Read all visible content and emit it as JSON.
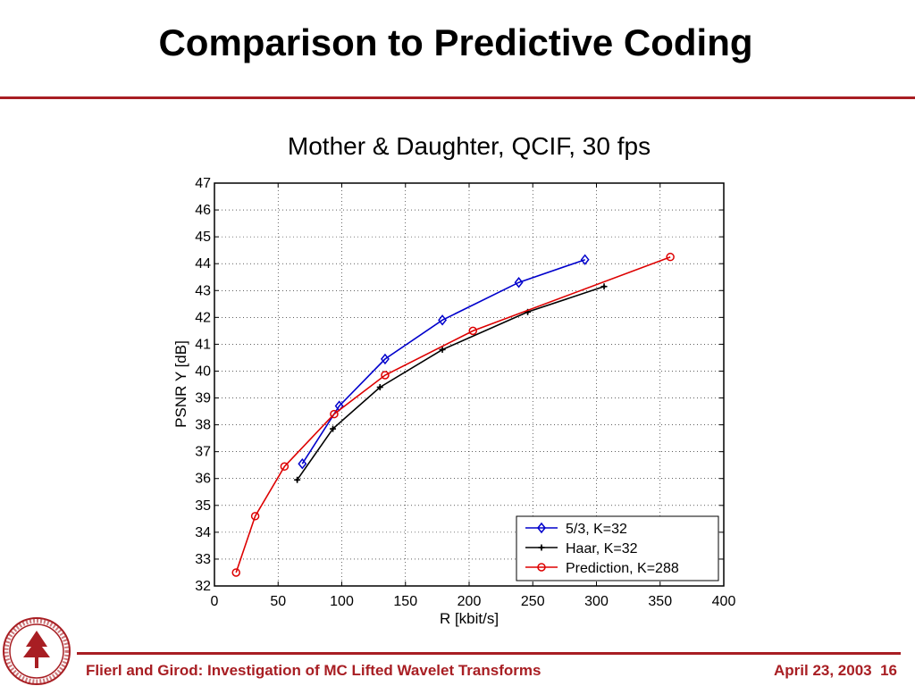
{
  "slide": {
    "title": "Comparison to Predictive Coding",
    "footer_left": "Flierl and Girod: Investigation of MC Lifted Wavelet Transforms",
    "footer_date": "April 23, 2003",
    "page_number": "16",
    "accent_color": "#a81e23",
    "logo": "stanford-university-seal"
  },
  "chart_data": {
    "type": "line",
    "title": "Mother & Daughter, QCIF, 30 fps",
    "xlabel": "R [kbit/s]",
    "ylabel": "PSNR Y [dB]",
    "xlim": [
      0,
      400
    ],
    "ylim": [
      32,
      47
    ],
    "xticks": [
      0,
      50,
      100,
      150,
      200,
      250,
      300,
      350,
      400
    ],
    "yticks": [
      32,
      33,
      34,
      35,
      36,
      37,
      38,
      39,
      40,
      41,
      42,
      43,
      44,
      45,
      46,
      47
    ],
    "grid": true,
    "legend_position": "bottom-right",
    "series": [
      {
        "name": "5/3, K=32",
        "color": "#0000cc",
        "marker": "diamond",
        "x": [
          69,
          98,
          134,
          179,
          239,
          291
        ],
        "y": [
          36.55,
          38.7,
          40.45,
          41.9,
          43.3,
          44.15
        ]
      },
      {
        "name": "Haar, K=32",
        "color": "#000000",
        "marker": "plus",
        "x": [
          65,
          93,
          130,
          179,
          246,
          306
        ],
        "y": [
          35.95,
          37.85,
          39.4,
          40.8,
          42.2,
          43.15
        ]
      },
      {
        "name": "Prediction, K=288",
        "color": "#dd0000",
        "marker": "circle",
        "x": [
          17,
          32,
          55,
          94,
          134,
          203,
          358
        ],
        "y": [
          32.5,
          34.6,
          36.45,
          38.4,
          39.85,
          41.5,
          44.25
        ]
      }
    ]
  }
}
